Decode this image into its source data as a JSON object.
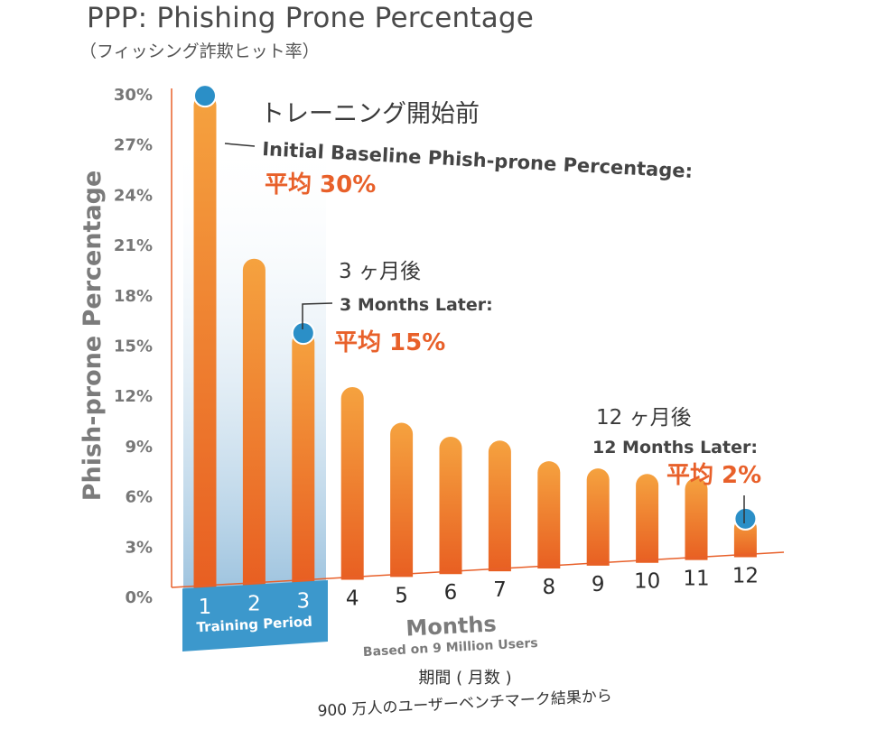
{
  "title": "PPP: Phishing Prone Percentage",
  "subtitle": "（フィッシング詐欺ヒット率）",
  "colors": {
    "bar_top": "#f5a23f",
    "bar_bottom": "#e85f22",
    "marker": "#2b8fc7",
    "accent_text": "#e8602a",
    "axis": "#e8602a",
    "training_box": "#3c98cc",
    "training_band_top": "#ffffff",
    "training_band_bottom": "#9fc4df",
    "label_gray": "#777777"
  },
  "chart_data": {
    "type": "bar",
    "x": [
      1,
      2,
      3,
      4,
      5,
      6,
      7,
      8,
      9,
      10,
      11,
      12
    ],
    "categories": [
      "1",
      "2",
      "3",
      "4",
      "5",
      "6",
      "7",
      "8",
      "9",
      "10",
      "11",
      "12"
    ],
    "values": [
      29.5,
      19.5,
      15,
      11.5,
      9.2,
      8.2,
      7.8,
      6.4,
      5.8,
      5.3,
      4.9,
      2.4
    ],
    "markers": [
      1,
      3,
      12
    ],
    "ylabel": "Phish-prone Percentage",
    "xlabel": "Months",
    "x_sublabel": "Based on 9 Million Users",
    "y_ticks": [
      "0%",
      "3%",
      "6%",
      "9%",
      "12%",
      "15%",
      "18%",
      "21%",
      "24%",
      "27%",
      "30%"
    ],
    "ylim": [
      0,
      30
    ],
    "training_period": {
      "months": [
        1,
        2,
        3
      ],
      "label": "Training Period"
    },
    "grid": false
  },
  "annotations": {
    "baseline": {
      "jp": "トレーニング開始前",
      "en": "Initial Baseline Phish-prone Percentage:",
      "value": "平均 30%"
    },
    "three_months": {
      "jp": "3 ヶ月後",
      "en": "3 Months Later:",
      "value": "平均 15%"
    },
    "twelve_months": {
      "jp": "12 ヶ月後",
      "en": "12 Months Later:",
      "value": "平均 2%"
    }
  },
  "footer": {
    "jp_period": "期間 ( 月数 )",
    "jp_basis": "900 万人のユーザーベンチマーク結果から"
  }
}
